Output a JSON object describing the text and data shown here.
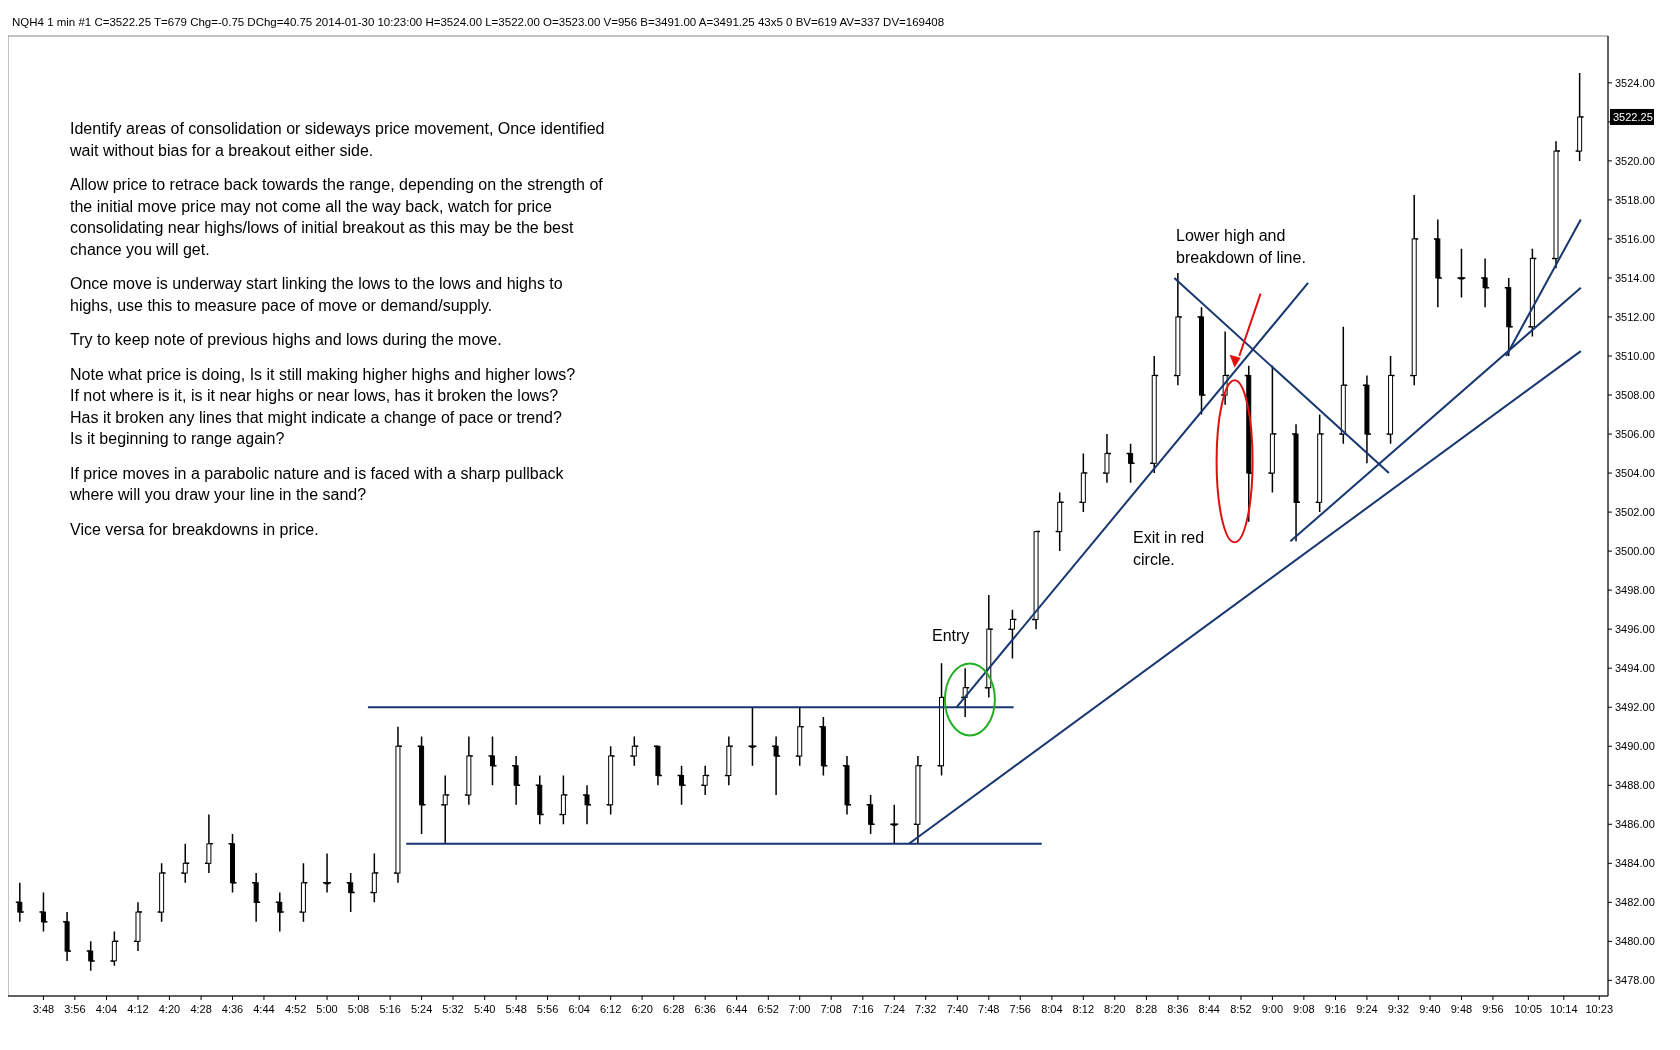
{
  "chart_data": {
    "type": "candlestick",
    "subtitle": "NQH4  1 min   #1  C=3522.25  T=679  Chg=-0.75  DChg=40.75  2014-01-30 10:23:00  H=3524.00  L=3522.00  O=3523.00  V=956  B=3491.00  A=3491.25  43x5  0  BV=619  AV=337  DV=169408",
    "x": [
      3.7,
      3.8,
      3.9,
      4.0,
      4.1,
      4.2,
      4.3,
      4.4,
      4.5,
      4.6,
      4.7,
      4.8,
      4.9,
      5.0,
      5.1,
      5.2,
      5.3,
      5.4,
      5.5,
      5.6,
      5.7,
      5.8,
      5.9,
      6.0,
      6.1,
      6.2,
      6.3,
      6.4,
      6.5,
      6.6,
      6.7,
      6.8,
      6.9,
      7.0,
      7.1,
      7.2,
      7.3,
      7.4,
      7.5,
      7.6,
      7.7,
      7.8,
      7.9,
      8.0,
      8.1,
      8.2,
      8.3,
      8.4,
      8.5,
      8.6,
      8.7,
      8.8,
      8.9,
      9.0,
      9.1,
      9.2,
      9.3,
      9.4,
      9.5,
      9.6,
      9.7,
      9.8,
      9.9,
      10.0,
      10.1,
      10.2,
      10.3
    ],
    "ohlc": [
      [
        3482,
        3483,
        3481,
        3481.5
      ],
      [
        3481.5,
        3482.5,
        3480.5,
        3481
      ],
      [
        3481,
        3481.5,
        3479,
        3479.5
      ],
      [
        3479.5,
        3480,
        3478.5,
        3479
      ],
      [
        3479,
        3480.5,
        3478.75,
        3480
      ],
      [
        3480,
        3482,
        3479.5,
        3481.5
      ],
      [
        3481.5,
        3484,
        3481,
        3483.5
      ],
      [
        3483.5,
        3485,
        3483,
        3484
      ],
      [
        3484,
        3486.5,
        3483.5,
        3485
      ],
      [
        3485,
        3485.5,
        3482.5,
        3483
      ],
      [
        3483,
        3483.5,
        3481,
        3482
      ],
      [
        3482,
        3482.5,
        3480.5,
        3481.5
      ],
      [
        3481.5,
        3484,
        3481,
        3483
      ],
      [
        3483,
        3484.5,
        3482.5,
        3483
      ],
      [
        3483,
        3483.5,
        3481.5,
        3482.5
      ],
      [
        3482.5,
        3484.5,
        3482,
        3483.5
      ],
      [
        3483.5,
        3491,
        3483,
        3490
      ],
      [
        3490,
        3490.5,
        3485.5,
        3487
      ],
      [
        3487,
        3488.5,
        3485,
        3487.5
      ],
      [
        3487.5,
        3490.5,
        3487,
        3489.5
      ],
      [
        3489.5,
        3490.5,
        3488,
        3489
      ],
      [
        3489,
        3489.5,
        3487,
        3488
      ],
      [
        3488,
        3488.5,
        3486,
        3486.5
      ],
      [
        3486.5,
        3488.5,
        3486,
        3487.5
      ],
      [
        3487.5,
        3488,
        3486,
        3487
      ],
      [
        3487,
        3490,
        3486.5,
        3489.5
      ],
      [
        3489.5,
        3490.5,
        3489,
        3490
      ],
      [
        3490,
        3490,
        3488,
        3488.5
      ],
      [
        3488.5,
        3489,
        3487,
        3488
      ],
      [
        3488,
        3489,
        3487.5,
        3488.5
      ],
      [
        3488.5,
        3490.5,
        3488,
        3490
      ],
      [
        3490,
        3492,
        3489,
        3490
      ],
      [
        3490,
        3490.5,
        3487.5,
        3489.5
      ],
      [
        3489.5,
        3492,
        3489,
        3491
      ],
      [
        3491,
        3491.5,
        3488.5,
        3489
      ],
      [
        3489,
        3489.5,
        3486.5,
        3487
      ],
      [
        3487,
        3487.5,
        3485.5,
        3486
      ],
      [
        3486,
        3487,
        3485,
        3486
      ],
      [
        3486,
        3489.5,
        3485,
        3489
      ],
      [
        3489,
        3494.25,
        3488.5,
        3492.5
      ],
      [
        3492.5,
        3494,
        3491.5,
        3493
      ],
      [
        3493,
        3497.75,
        3492.5,
        3496
      ],
      [
        3496,
        3497,
        3494.5,
        3496.5
      ],
      [
        3496.5,
        3501,
        3496,
        3501
      ],
      [
        3501,
        3503,
        3500,
        3502.5
      ],
      [
        3502.5,
        3505,
        3502,
        3504
      ],
      [
        3504,
        3506,
        3503.5,
        3505
      ],
      [
        3505,
        3505.5,
        3503.5,
        3504.5
      ],
      [
        3504.5,
        3510,
        3504,
        3509
      ],
      [
        3509,
        3514.25,
        3508.5,
        3512
      ],
      [
        3512,
        3512.5,
        3507,
        3508
      ],
      [
        3508,
        3511.25,
        3507.5,
        3509
      ],
      [
        3509,
        3509.5,
        3501.5,
        3504
      ],
      [
        3504,
        3509.5,
        3503,
        3506
      ],
      [
        3506,
        3506.5,
        3500.5,
        3502.5
      ],
      [
        3502.5,
        3507,
        3502,
        3506
      ],
      [
        3506,
        3511.5,
        3505.5,
        3508.5
      ],
      [
        3508.5,
        3509,
        3504.5,
        3506
      ],
      [
        3506,
        3510,
        3505.5,
        3509
      ],
      [
        3509,
        3518.25,
        3508.5,
        3516
      ],
      [
        3516,
        3517,
        3512.5,
        3514
      ],
      [
        3514,
        3515.5,
        3513,
        3514
      ],
      [
        3514,
        3515,
        3512.5,
        3513.5
      ],
      [
        3513.5,
        3514,
        3510,
        3511.5
      ],
      [
        3511.5,
        3515.5,
        3511,
        3515
      ],
      [
        3515,
        3521,
        3514.5,
        3520.5
      ],
      [
        3520.5,
        3524.5,
        3520,
        3522.25
      ]
    ],
    "series": [
      {
        "type": "line",
        "color": "#17366f",
        "x": [
          5.173,
          7.905
        ],
        "values": [
          3492,
          3492
        ]
      },
      {
        "type": "line",
        "color": "#17366f",
        "x": [
          5.335,
          8.024
        ],
        "values": [
          3485,
          3485
        ]
      },
      {
        "type": "line",
        "color": "#17366f",
        "x": [
          7.462,
          10.305
        ],
        "values": [
          3485,
          3510.25
        ]
      },
      {
        "type": "line",
        "color": "#17366f",
        "x": [
          7.664,
          9.151
        ],
        "values": [
          3492,
          3513.75
        ]
      },
      {
        "type": "line",
        "color": "#17366f",
        "x": [
          8.585,
          9.493
        ],
        "values": [
          3514,
          3504
        ]
      },
      {
        "type": "line",
        "color": "#17366f",
        "x": [
          9.076,
          10.305
        ],
        "values": [
          3500.5,
          3513.5
        ]
      },
      {
        "type": "line",
        "color": "#17366f",
        "x": [
          9.989,
          10.305
        ],
        "values": [
          3510,
          3517
        ]
      }
    ],
    "xlim": [
      3.65,
      10.42
    ],
    "ylim": [
      3477.2,
      3526.4
    ],
    "xticks": [
      {
        "value": 3.8,
        "label": "3:48"
      },
      {
        "value": 3.933,
        "label": "3:56"
      },
      {
        "value": 4.067,
        "label": "4:04"
      },
      {
        "value": 4.2,
        "label": "4:12"
      },
      {
        "value": 4.333,
        "label": "4:20"
      },
      {
        "value": 4.467,
        "label": "4:28"
      },
      {
        "value": 4.6,
        "label": "4:36"
      },
      {
        "value": 4.733,
        "label": "4:44"
      },
      {
        "value": 4.867,
        "label": "4:52"
      },
      {
        "value": 5,
        "label": "5:00"
      },
      {
        "value": 5.133,
        "label": "5:08"
      },
      {
        "value": 5.267,
        "label": "5:16"
      },
      {
        "value": 5.4,
        "label": "5:24"
      },
      {
        "value": 5.533,
        "label": "5:32"
      },
      {
        "value": 5.667,
        "label": "5:40"
      },
      {
        "value": 5.8,
        "label": "5:48"
      },
      {
        "value": 5.933,
        "label": "5:56"
      },
      {
        "value": 6.067,
        "label": "6:04"
      },
      {
        "value": 6.2,
        "label": "6:12"
      },
      {
        "value": 6.333,
        "label": "6:20"
      },
      {
        "value": 6.467,
        "label": "6:28"
      },
      {
        "value": 6.6,
        "label": "6:36"
      },
      {
        "value": 6.733,
        "label": "6:44"
      },
      {
        "value": 6.867,
        "label": "6:52"
      },
      {
        "value": 7,
        "label": "7:00"
      },
      {
        "value": 7.133,
        "label": "7:08"
      },
      {
        "value": 7.267,
        "label": "7:16"
      },
      {
        "value": 7.4,
        "label": "7:24"
      },
      {
        "value": 7.533,
        "label": "7:32"
      },
      {
        "value": 7.667,
        "label": "7:40"
      },
      {
        "value": 7.8,
        "label": "7:48"
      },
      {
        "value": 7.933,
        "label": "7:56"
      },
      {
        "value": 8.067,
        "label": "8:04"
      },
      {
        "value": 8.2,
        "label": "8:12"
      },
      {
        "value": 8.333,
        "label": "8:20"
      },
      {
        "value": 8.467,
        "label": "8:28"
      },
      {
        "value": 8.6,
        "label": "8:36"
      },
      {
        "value": 8.733,
        "label": "8:44"
      },
      {
        "value": 8.867,
        "label": "8:52"
      },
      {
        "value": 9,
        "label": "9:00"
      },
      {
        "value": 9.133,
        "label": "9:08"
      },
      {
        "value": 9.267,
        "label": "9:16"
      },
      {
        "value": 9.4,
        "label": "9:24"
      },
      {
        "value": 9.533,
        "label": "9:32"
      },
      {
        "value": 9.667,
        "label": "9:40"
      },
      {
        "value": 9.8,
        "label": "9:48"
      },
      {
        "value": 9.933,
        "label": "9:56"
      },
      {
        "value": 10.083,
        "label": "10:05"
      },
      {
        "value": 10.233,
        "label": "10:14"
      },
      {
        "value": 10.383,
        "label": "10:23"
      }
    ],
    "yticks": [
      {
        "value": 3478,
        "label": "3478.00"
      },
      {
        "value": 3480,
        "label": "3480.00"
      },
      {
        "value": 3482,
        "label": "3482.00"
      },
      {
        "value": 3484,
        "label": "3484.00"
      },
      {
        "value": 3486,
        "label": "3486.00"
      },
      {
        "value": 3488,
        "label": "3488.00"
      },
      {
        "value": 3490,
        "label": "3490.00"
      },
      {
        "value": 3492,
        "label": "3492.00"
      },
      {
        "value": 3494,
        "label": "3494.00"
      },
      {
        "value": 3496,
        "label": "3496.00"
      },
      {
        "value": 3498,
        "label": "3498.00"
      },
      {
        "value": 3500,
        "label": "3500.00"
      },
      {
        "value": 3502,
        "label": "3502.00"
      },
      {
        "value": 3504,
        "label": "3504.00"
      },
      {
        "value": 3506,
        "label": "3506.00"
      },
      {
        "value": 3508,
        "label": "3508.00"
      },
      {
        "value": 3510,
        "label": "3510.00"
      },
      {
        "value": 3512,
        "label": "3512.00"
      },
      {
        "value": 3514,
        "label": "3514.00"
      },
      {
        "value": 3516,
        "label": "3516.00"
      },
      {
        "value": 3518,
        "label": "3518.00"
      },
      {
        "value": 3520,
        "label": "3520.00"
      },
      {
        "value": 3522,
        "label": null
      },
      {
        "value": 3524,
        "label": "3524.00"
      }
    ],
    "grid": false,
    "annotations": [
      "Identify areas of consolidation or sideways price movement,  Once identified\nwait without bias for a breakout either side.",
      "Allow price to retrace back towards the range, depending on the strength of\nthe initial move price may not come all the way back, watch for price\nconsolidating near highs/lows of initial breakout as this may be the best\nchance you will get.",
      "Once move is underway start linking the lows to the lows and highs to\nhighs, use this to measure pace of move or demand/supply.",
      "Try to keep note of previous highs and lows during the move.",
      "Note what price is doing, Is it still making higher highs and higher lows?\nIf not where is it, is it near highs or near lows, has it broken the lows?\nHas it broken any lines that might indicate a change of pace or trend?\nIs it beginning to range again?",
      "If price moves in a parabolic nature and is faced with a sharp pullback\nwhere will you draw your line in the sand?",
      "Vice versa for breakdowns in price.",
      "Entry",
      "Lower high and\nbreakdown of line.",
      "Exit in red\ncircle.",
      {
        "text": "3522.25",
        "y": 3522.25
      }
    ]
  }
}
